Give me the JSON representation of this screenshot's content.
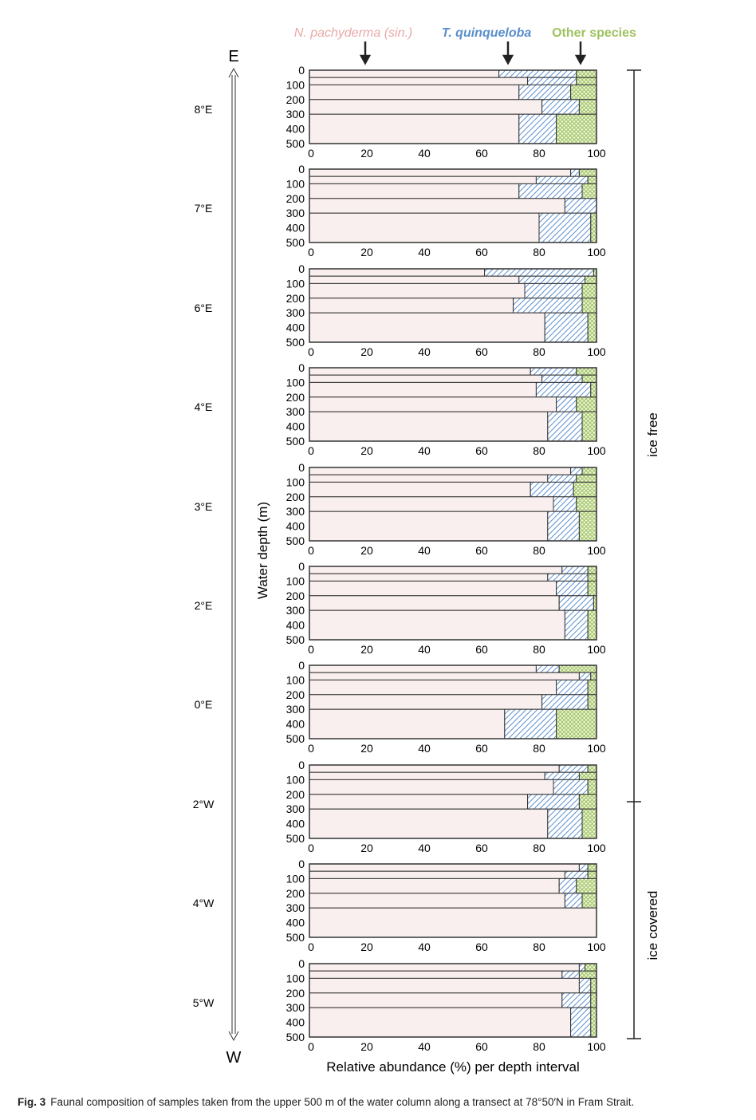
{
  "chart_data": {
    "type": "bar",
    "orientation": "horizontal-stacked",
    "xlabel": "Relative abundance (%) per depth interval",
    "ylabel": "Water depth (m)",
    "xlim": [
      0,
      100
    ],
    "ylim": [
      0,
      500
    ],
    "x_ticks": [
      "0",
      "20",
      "40",
      "60",
      "80",
      "100"
    ],
    "y_ticks": [
      "0",
      "100",
      "200",
      "300",
      "400",
      "500"
    ],
    "grid": true,
    "legend_placement": "top",
    "series_names": [
      "N. pachyderma (sin.)",
      "T. quinqueloba",
      "Other species"
    ],
    "colors": {
      "N. pachyderma (sin.)": "#e9a9a8",
      "T. quinqueloba": "#5b8fcc",
      "Other species": "#9fc25f"
    },
    "depth_intervals": [
      [
        0,
        50
      ],
      [
        50,
        100
      ],
      [
        100,
        200
      ],
      [
        200,
        300
      ],
      [
        300,
        500
      ]
    ],
    "panels": [
      {
        "station": "8°E",
        "values": [
          [
            66,
            27,
            7
          ],
          [
            76,
            17,
            7
          ],
          [
            73,
            18,
            9
          ],
          [
            81,
            13,
            6
          ],
          [
            73,
            13,
            14
          ]
        ]
      },
      {
        "station": "7°E",
        "values": [
          [
            91,
            3,
            6
          ],
          [
            79,
            18,
            3
          ],
          [
            73,
            22,
            5
          ],
          [
            89,
            11,
            0
          ],
          [
            80,
            18,
            2
          ]
        ]
      },
      {
        "station": "6°E",
        "values": [
          [
            61,
            38,
            1
          ],
          [
            73,
            23,
            4
          ],
          [
            75,
            20,
            5
          ],
          [
            71,
            24,
            5
          ],
          [
            82,
            15,
            3
          ]
        ]
      },
      {
        "station": "4°E",
        "values": [
          [
            77,
            16,
            7
          ],
          [
            81,
            14,
            5
          ],
          [
            79,
            19,
            2
          ],
          [
            86,
            7,
            7
          ],
          [
            83,
            12,
            5
          ]
        ]
      },
      {
        "station": "3°E",
        "values": [
          [
            91,
            4,
            5
          ],
          [
            83,
            10,
            7
          ],
          [
            77,
            15,
            8
          ],
          [
            85,
            8,
            7
          ],
          [
            83,
            11,
            6
          ]
        ]
      },
      {
        "station": "2°E",
        "values": [
          [
            88,
            9,
            3
          ],
          [
            83,
            14,
            3
          ],
          [
            86,
            11,
            3
          ],
          [
            87,
            12,
            1
          ],
          [
            89,
            8,
            3
          ]
        ]
      },
      {
        "station": "0°E",
        "values": [
          [
            79,
            8,
            13
          ],
          [
            94,
            4,
            2
          ],
          [
            86,
            11,
            3
          ],
          [
            81,
            16,
            3
          ],
          [
            68,
            18,
            14
          ]
        ]
      },
      {
        "station": "2°W",
        "values": [
          [
            87,
            10,
            3
          ],
          [
            82,
            12,
            6
          ],
          [
            85,
            12,
            3
          ],
          [
            76,
            18,
            6
          ],
          [
            83,
            12,
            5
          ]
        ]
      },
      {
        "station": "4°W",
        "values": [
          [
            94,
            3,
            3
          ],
          [
            89,
            8,
            3
          ],
          [
            87,
            6,
            7
          ],
          [
            89,
            6,
            5
          ],
          [
            100,
            0,
            0
          ]
        ]
      },
      {
        "station": "5°W",
        "values": [
          [
            94,
            2,
            4
          ],
          [
            88,
            6,
            6
          ],
          [
            94,
            4,
            2
          ],
          [
            88,
            10,
            2
          ],
          [
            91,
            7,
            2
          ]
        ]
      }
    ],
    "annotations": {
      "east_label": "E",
      "west_label": "W",
      "ice_free": "ice free",
      "ice_covered": "ice covered"
    }
  },
  "caption": {
    "label": "Fig. 3",
    "text": "Faunal composition of samples taken from the upper 500 m of the water column along a transect at 78°50′N in Fram Strait."
  }
}
